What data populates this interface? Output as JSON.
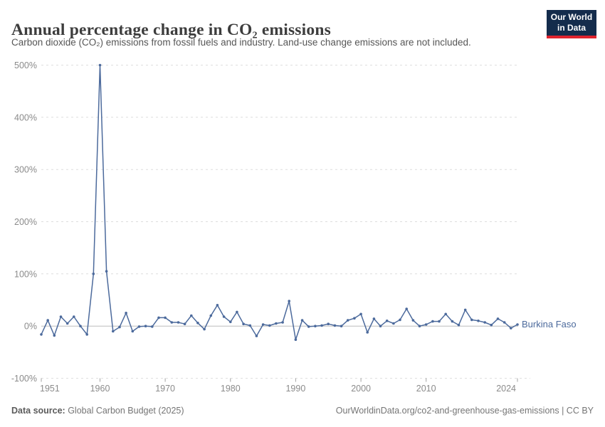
{
  "header": {
    "title": "Annual percentage change in CO₂ emissions",
    "subtitle": "Carbon dioxide (CO₂) emissions from fossil fuels and industry. Land-use change emissions are not included.",
    "logo": {
      "line1": "Our World",
      "line2": "in Data",
      "bg_color": "#142C4C",
      "accent_color": "#E0232E"
    }
  },
  "chart_data": {
    "type": "line",
    "title": "Annual percentage change in CO₂ emissions",
    "xlabel": "",
    "ylabel": "",
    "xlim": [
      1951,
      2024
    ],
    "ylim": [
      -100,
      500
    ],
    "grid": "dashed horizontal gridlines, solid zero line",
    "legend_position": "end-of-line label",
    "x_ticks": {
      "values": [
        1951,
        1960,
        1970,
        1980,
        1990,
        2000,
        2010,
        2024
      ],
      "labels": [
        "1951",
        "1960",
        "1970",
        "1980",
        "1990",
        "2000",
        "2010",
        "2024"
      ]
    },
    "y_ticks": {
      "values": [
        -100,
        0,
        100,
        200,
        300,
        400,
        500
      ],
      "labels": [
        "-100%",
        "0%",
        "100%",
        "200%",
        "300%",
        "400%",
        "500%"
      ]
    },
    "series": [
      {
        "name": "Burkina Faso",
        "color": "#4C6A9C",
        "x": [
          1951,
          1952,
          1953,
          1954,
          1955,
          1956,
          1957,
          1958,
          1959,
          1960,
          1961,
          1962,
          1963,
          1964,
          1965,
          1966,
          1967,
          1968,
          1969,
          1970,
          1971,
          1972,
          1973,
          1974,
          1975,
          1976,
          1977,
          1978,
          1979,
          1980,
          1981,
          1982,
          1983,
          1984,
          1985,
          1986,
          1987,
          1988,
          1989,
          1990,
          1991,
          1992,
          1993,
          1994,
          1995,
          1996,
          1997,
          1998,
          1999,
          2000,
          2001,
          2002,
          2003,
          2004,
          2005,
          2006,
          2007,
          2008,
          2009,
          2010,
          2011,
          2012,
          2013,
          2014,
          2015,
          2016,
          2017,
          2018,
          2019,
          2020,
          2021,
          2022,
          2023,
          2024
        ],
        "values": [
          -16,
          11,
          -18,
          18,
          5,
          18,
          0,
          -16,
          100,
          500,
          105,
          -10,
          -2,
          25,
          -10,
          -1,
          0,
          -1,
          16,
          16,
          7,
          7,
          4,
          20,
          6,
          -6,
          20,
          40,
          18,
          8,
          27,
          4,
          1,
          -19,
          3,
          1,
          5,
          7,
          48,
          -26,
          11,
          -1,
          0,
          1,
          4,
          1,
          0,
          11,
          15,
          23,
          -12,
          14,
          0,
          10,
          5,
          12,
          33,
          11,
          0,
          3,
          9,
          9,
          23,
          9,
          2,
          31,
          12,
          10,
          7,
          2,
          14,
          7,
          -4,
          3
        ]
      }
    ]
  },
  "footer": {
    "source_label": "Data source:",
    "source_value": " Global Carbon Budget (2025)",
    "link_text": "OurWorldinData.org/co2-and-greenhouse-gas-emissions | CC BY"
  }
}
